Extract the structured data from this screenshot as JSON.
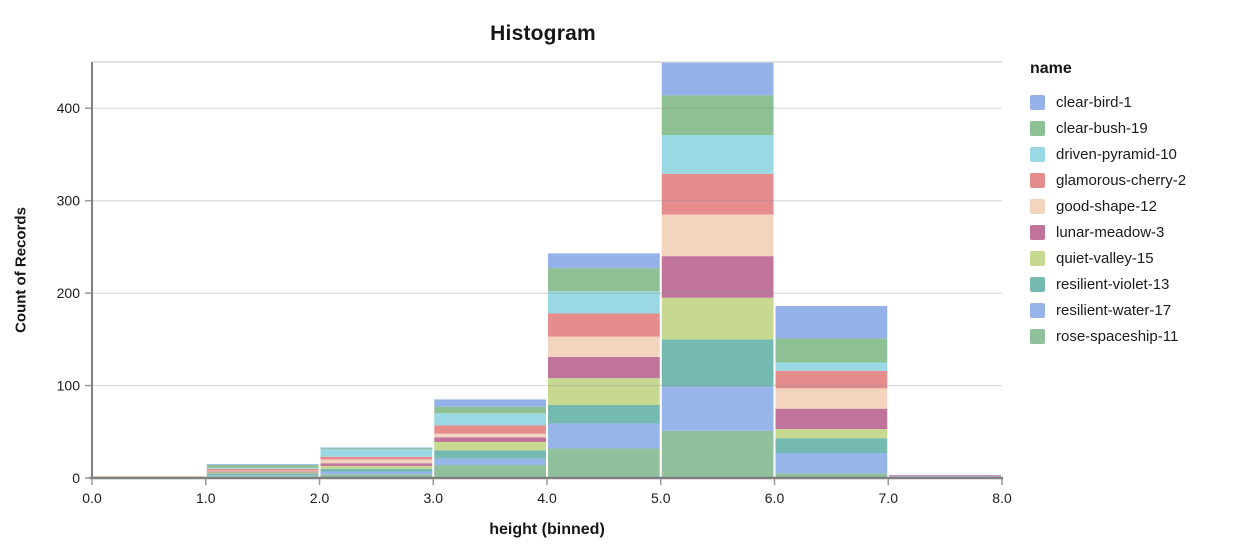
{
  "chart_data": {
    "type": "bar",
    "variant": "stacked-histogram",
    "title": "Histogram",
    "xlabel": "height (binned)",
    "ylabel": "Count of Records",
    "legend_title": "name",
    "legend_position": "right",
    "grid": true,
    "xlim": [
      0,
      8
    ],
    "ylim": [
      0,
      450
    ],
    "x_tick_labels": [
      "0.0",
      "1.0",
      "2.0",
      "3.0",
      "4.0",
      "5.0",
      "6.0",
      "7.0",
      "8.0"
    ],
    "y_ticks": [
      0,
      100,
      200,
      300,
      400
    ],
    "bin_edges": [
      0,
      1,
      2,
      3,
      4,
      5,
      6,
      7,
      8
    ],
    "bin_labels": [
      "0-1",
      "1-2",
      "2-3",
      "3-4",
      "4-5",
      "5-6",
      "6-7",
      "7-8"
    ],
    "stack_order": "first-series-on-top",
    "series": [
      {
        "name": "clear-bird-1",
        "color": "#94b1e9",
        "values": [
          0,
          1,
          1,
          8,
          16,
          36,
          35,
          0
        ]
      },
      {
        "name": "clear-bush-19",
        "color": "#8dc092",
        "values": [
          0,
          3,
          1,
          7,
          25,
          43,
          26,
          0
        ]
      },
      {
        "name": "driven-pyramid-10",
        "color": "#9ad9e3",
        "values": [
          0,
          1,
          8,
          13,
          24,
          42,
          9,
          0
        ]
      },
      {
        "name": "glamorous-cherry-2",
        "color": "#e58d8d",
        "values": [
          0,
          2,
          3,
          9,
          25,
          44,
          19,
          0
        ]
      },
      {
        "name": "good-shape-12",
        "color": "#f3d4bf",
        "values": [
          1,
          1,
          4,
          4,
          22,
          45,
          22,
          0
        ]
      },
      {
        "name": "lunar-meadow-3",
        "color": "#c0749b",
        "values": [
          0,
          1,
          3,
          5,
          23,
          45,
          22,
          1
        ]
      },
      {
        "name": "quiet-valley-15",
        "color": "#c7d990",
        "values": [
          1,
          1,
          3,
          9,
          29,
          45,
          10,
          0
        ]
      },
      {
        "name": "resilient-violet-13",
        "color": "#74bab1",
        "values": [
          0,
          2,
          3,
          9,
          20,
          51,
          16,
          0
        ]
      },
      {
        "name": "resilient-water-17",
        "color": "#97b5e9",
        "values": [
          0,
          1,
          3,
          7,
          27,
          48,
          22,
          2
        ]
      },
      {
        "name": "rose-spaceship-11",
        "color": "#91c09c",
        "values": [
          0,
          2,
          4,
          14,
          32,
          51,
          5,
          0
        ]
      }
    ],
    "bin_totals": [
      2,
      15,
      33,
      85,
      243,
      450,
      186,
      3
    ],
    "colors": {
      "axis_line": "#808080",
      "gridline": "#d9d9d9",
      "tick": "#999999",
      "text": "#1b1b1b"
    }
  }
}
